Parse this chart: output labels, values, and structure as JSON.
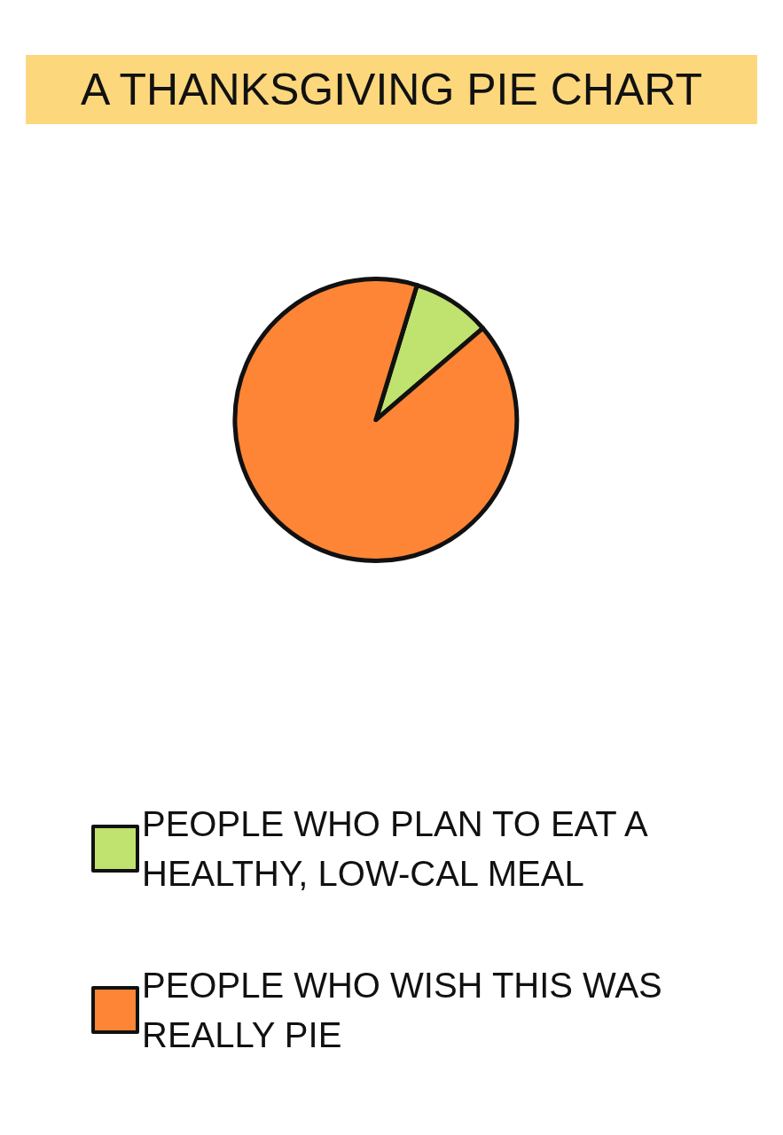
{
  "chart_data": {
    "type": "pie",
    "title": "A THANKSGIVING PIE CHART",
    "categories": [
      "PEOPLE WHO PLAN TO EAT A HEALTHY, LOW-CAL MEAL",
      "PEOPLE WHO WISH THIS WAS REALLY PIE"
    ],
    "values": [
      9,
      91
    ],
    "colors": [
      "#c0e26f",
      "#fd8535"
    ],
    "legend": "bottom"
  }
}
